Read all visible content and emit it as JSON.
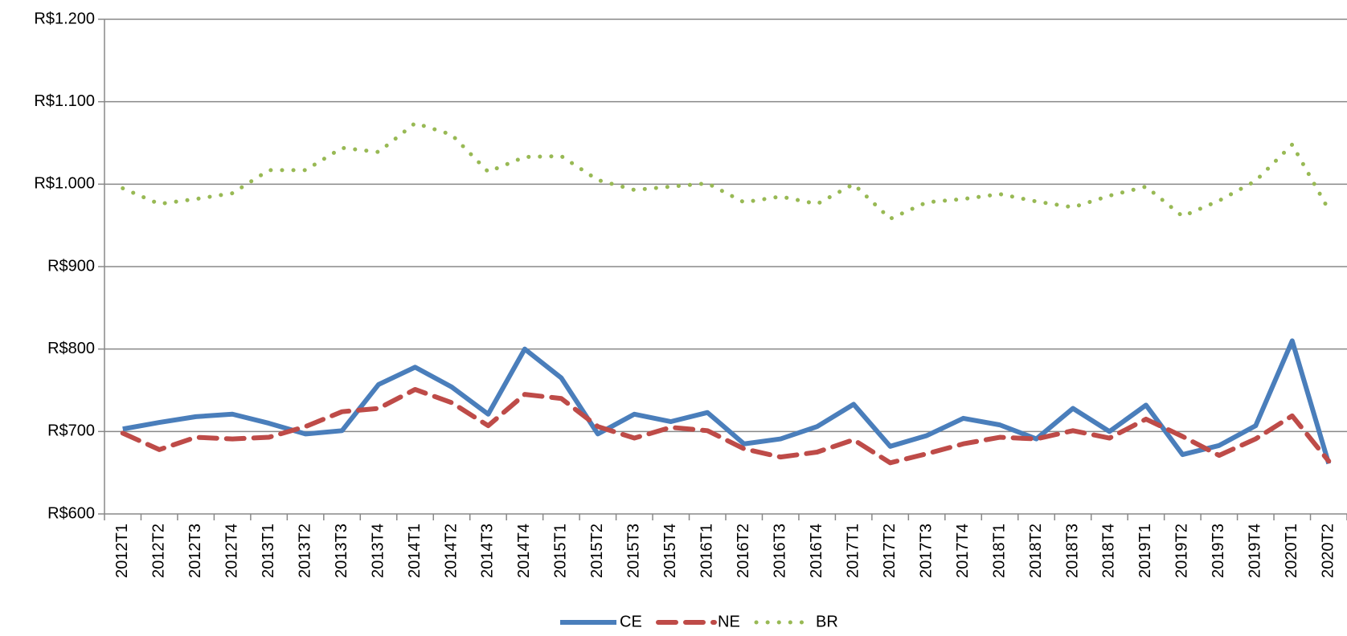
{
  "chart_data": {
    "type": "line",
    "categories": [
      "2012T1",
      "2012T2",
      "2012T3",
      "2012T4",
      "2013T1",
      "2013T2",
      "2013T3",
      "2013T4",
      "2014T1",
      "2014T2",
      "2014T3",
      "2014T4",
      "2015T1",
      "2015T2",
      "2015T3",
      "2015T4",
      "2016T1",
      "2016T2",
      "2016T3",
      "2016T4",
      "2017T1",
      "2017T2",
      "2017T3",
      "2017T4",
      "2018T1",
      "2018T2",
      "2018T3",
      "2018T4",
      "2019T1",
      "2019T2",
      "2019T3",
      "2019T4",
      "2020T1",
      "2020T2"
    ],
    "series": [
      {
        "name": "CE",
        "color": "#4a7ebb",
        "dash": "solid",
        "values": [
          703,
          711,
          718,
          721,
          710,
          697,
          701,
          757,
          778,
          754,
          721,
          800,
          765,
          697,
          721,
          712,
          723,
          685,
          691,
          706,
          733,
          682,
          695,
          716,
          708,
          691,
          728,
          700,
          732,
          672,
          683,
          707,
          810,
          661
        ]
      },
      {
        "name": "NE",
        "color": "#be4b48",
        "dash": "dashed",
        "values": [
          698,
          678,
          693,
          691,
          693,
          706,
          724,
          728,
          751,
          735,
          707,
          745,
          740,
          706,
          692,
          705,
          701,
          679,
          669,
          675,
          690,
          662,
          673,
          685,
          693,
          691,
          701,
          692,
          715,
          694,
          671,
          691,
          719,
          664
        ]
      },
      {
        "name": "BR",
        "color": "#98b954",
        "dash": "dotted",
        "values": [
          995,
          976,
          982,
          989,
          1017,
          1017,
          1044,
          1039,
          1074,
          1060,
          1015,
          1033,
          1034,
          1005,
          993,
          997,
          1001,
          978,
          985,
          976,
          1000,
          958,
          978,
          982,
          988,
          979,
          972,
          986,
          997,
          961,
          980,
          1004,
          1048,
          969
        ]
      }
    ],
    "ylim": [
      600,
      1200
    ],
    "yticks": [
      {
        "value": 600,
        "label": "R$600"
      },
      {
        "value": 700,
        "label": "R$700"
      },
      {
        "value": 800,
        "label": "R$800"
      },
      {
        "value": 900,
        "label": "R$900"
      },
      {
        "value": 1000,
        "label": "R$1.000"
      },
      {
        "value": 1100,
        "label": "R$1.100"
      },
      {
        "value": 1200,
        "label": "R$1.200"
      }
    ],
    "grid": true,
    "legend": "bottom"
  }
}
